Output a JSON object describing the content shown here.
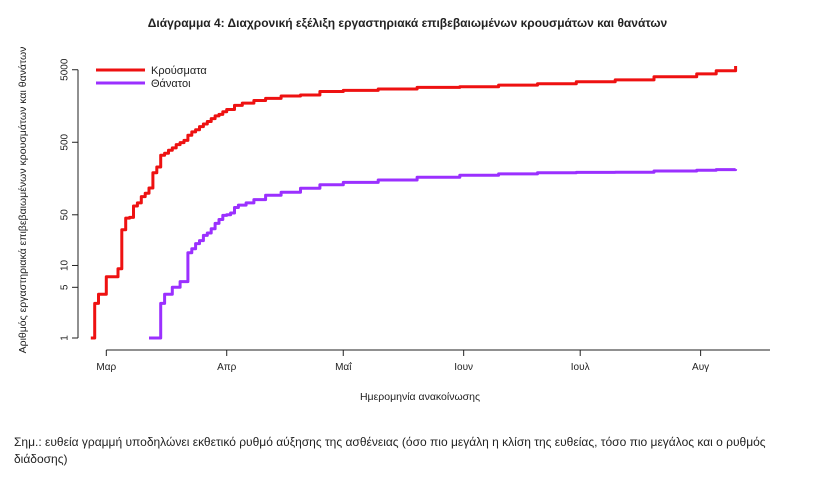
{
  "chart_data": {
    "type": "line",
    "title": "Διάγραμμα 4: Διαχρονική εξέλιξη εργαστηριακά επιβεβαιωμένων κρουσμάτων και θανάτων",
    "xlabel": "Ημερομηνία ανακοίνωσης",
    "ylabel": "Αριθμός εργαστηριακά επιβεβαιωμένων κρουσμάτων και θανάτων",
    "x_scale": "date",
    "y_scale": "log",
    "xlim": [
      "2020-02-24",
      "2020-08-15"
    ],
    "ylim": [
      1,
      6000
    ],
    "x_ticks": [
      {
        "date": "2020-03-01",
        "label": "Μαρ"
      },
      {
        "date": "2020-04-01",
        "label": "Απρ"
      },
      {
        "date": "2020-05-01",
        "label": "Μαΐ"
      },
      {
        "date": "2020-06-01",
        "label": "Ιουν"
      },
      {
        "date": "2020-07-01",
        "label": "Ιουλ"
      },
      {
        "date": "2020-08-01",
        "label": "Αυγ"
      }
    ],
    "y_ticks": [
      1,
      5,
      10,
      50,
      500,
      5000
    ],
    "grid": false,
    "legend_position": "top-left",
    "series": [
      {
        "name": "Κρούσματα",
        "color": "#ee1111",
        "points": [
          [
            "2020-02-26",
            1
          ],
          [
            "2020-02-27",
            3
          ],
          [
            "2020-02-28",
            4
          ],
          [
            "2020-02-29",
            4
          ],
          [
            "2020-03-01",
            7
          ],
          [
            "2020-03-03",
            7
          ],
          [
            "2020-03-04",
            9
          ],
          [
            "2020-03-05",
            31
          ],
          [
            "2020-03-06",
            45
          ],
          [
            "2020-03-07",
            46
          ],
          [
            "2020-03-08",
            66
          ],
          [
            "2020-03-09",
            73
          ],
          [
            "2020-03-10",
            89
          ],
          [
            "2020-03-11",
            99
          ],
          [
            "2020-03-12",
            117
          ],
          [
            "2020-03-13",
            190
          ],
          [
            "2020-03-14",
            228
          ],
          [
            "2020-03-15",
            331
          ],
          [
            "2020-03-16",
            352
          ],
          [
            "2020-03-17",
            387
          ],
          [
            "2020-03-18",
            418
          ],
          [
            "2020-03-19",
            464
          ],
          [
            "2020-03-20",
            495
          ],
          [
            "2020-03-21",
            530
          ],
          [
            "2020-03-22",
            624
          ],
          [
            "2020-03-23",
            695
          ],
          [
            "2020-03-24",
            743
          ],
          [
            "2020-03-25",
            821
          ],
          [
            "2020-03-26",
            892
          ],
          [
            "2020-03-27",
            966
          ],
          [
            "2020-03-28",
            1061
          ],
          [
            "2020-03-29",
            1156
          ],
          [
            "2020-03-30",
            1212
          ],
          [
            "2020-03-31",
            1314
          ],
          [
            "2020-04-01",
            1415
          ],
          [
            "2020-04-03",
            1613
          ],
          [
            "2020-04-05",
            1735
          ],
          [
            "2020-04-08",
            1884
          ],
          [
            "2020-04-11",
            2011
          ],
          [
            "2020-04-15",
            2170
          ],
          [
            "2020-04-20",
            2245
          ],
          [
            "2020-04-25",
            2506
          ],
          [
            "2020-05-01",
            2591
          ],
          [
            "2020-05-10",
            2710
          ],
          [
            "2020-05-20",
            2850
          ],
          [
            "2020-05-31",
            2915
          ],
          [
            "2020-06-10",
            3068
          ],
          [
            "2020-06-20",
            3203
          ],
          [
            "2020-06-30",
            3409
          ],
          [
            "2020-07-10",
            3622
          ],
          [
            "2020-07-20",
            4007
          ],
          [
            "2020-07-31",
            4387
          ],
          [
            "2020-08-05",
            4855
          ],
          [
            "2020-08-10",
            5623
          ]
        ]
      },
      {
        "name": "Θάνατοι",
        "color": "#9b30ff",
        "points": [
          [
            "2020-03-12",
            1
          ],
          [
            "2020-03-14",
            1
          ],
          [
            "2020-03-15",
            3
          ],
          [
            "2020-03-16",
            4
          ],
          [
            "2020-03-17",
            4
          ],
          [
            "2020-03-18",
            5
          ],
          [
            "2020-03-19",
            5
          ],
          [
            "2020-03-20",
            6
          ],
          [
            "2020-03-21",
            6
          ],
          [
            "2020-03-22",
            15
          ],
          [
            "2020-03-23",
            17
          ],
          [
            "2020-03-24",
            20
          ],
          [
            "2020-03-25",
            22
          ],
          [
            "2020-03-26",
            26
          ],
          [
            "2020-03-27",
            28
          ],
          [
            "2020-03-28",
            32
          ],
          [
            "2020-03-29",
            38
          ],
          [
            "2020-03-30",
            43
          ],
          [
            "2020-03-31",
            49
          ],
          [
            "2020-04-01",
            50
          ],
          [
            "2020-04-02",
            53
          ],
          [
            "2020-04-03",
            63
          ],
          [
            "2020-04-04",
            68
          ],
          [
            "2020-04-06",
            73
          ],
          [
            "2020-04-08",
            81
          ],
          [
            "2020-04-11",
            93
          ],
          [
            "2020-04-15",
            102
          ],
          [
            "2020-04-20",
            116
          ],
          [
            "2020-04-25",
            130
          ],
          [
            "2020-05-01",
            140
          ],
          [
            "2020-05-10",
            151
          ],
          [
            "2020-05-20",
            165
          ],
          [
            "2020-05-31",
            175
          ],
          [
            "2020-06-10",
            183
          ],
          [
            "2020-06-20",
            190
          ],
          [
            "2020-06-30",
            192
          ],
          [
            "2020-07-10",
            193
          ],
          [
            "2020-07-20",
            201
          ],
          [
            "2020-07-31",
            206
          ],
          [
            "2020-08-05",
            210
          ],
          [
            "2020-08-10",
            213
          ]
        ]
      }
    ]
  },
  "note": "Σημ.: ευθεία γραμμή υποδηλώνει εκθετικό ρυθμό αύξησης της ασθένειας (όσο πιο μεγάλη η κλίση της ευθείας, τόσο πιο μεγάλος και ο ρυθμός διάδοσης)"
}
